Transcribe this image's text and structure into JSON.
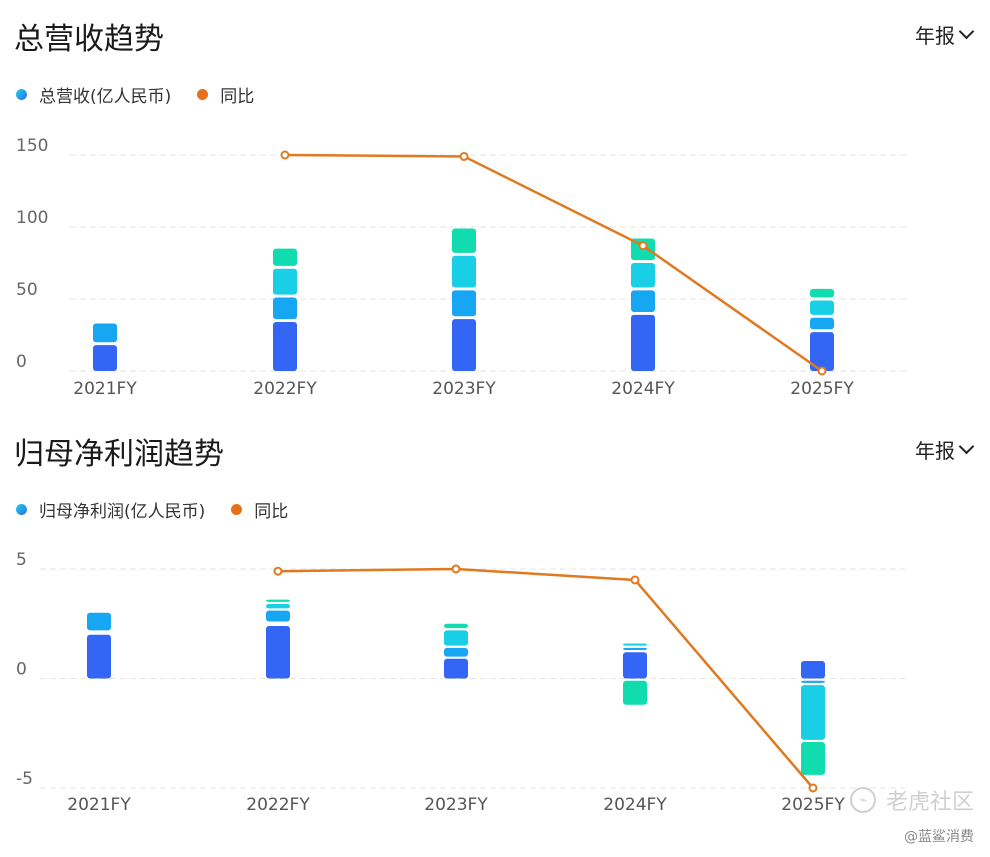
{
  "chart_data": [
    {
      "type": "bar",
      "title": "总营收趋势",
      "period_label": "年报",
      "categories": [
        "2021FY",
        "2022FY",
        "2023FY",
        "2024FY",
        "2025FY"
      ],
      "yticks": [
        "150",
        "100",
        "50",
        "0"
      ],
      "ylim": [
        0,
        150
      ],
      "legend": [
        "总营收(亿人民币)",
        "同比"
      ],
      "series": [
        {
          "name": "总营收(亿人民币)",
          "kind": "bar",
          "values": [
            33,
            85,
            99,
            92,
            57
          ]
        },
        {
          "name": "同比",
          "kind": "line",
          "values": [
            null,
            150,
            149,
            87,
            0
          ]
        }
      ],
      "bar_segments": [
        [
          [
            0,
            18
          ],
          [
            20,
            33
          ]
        ],
        [
          [
            0,
            34
          ],
          [
            36,
            51
          ],
          [
            53,
            71
          ],
          [
            73,
            85
          ]
        ],
        [
          [
            0,
            36
          ],
          [
            38,
            56
          ],
          [
            58,
            80
          ],
          [
            82,
            99
          ]
        ],
        [
          [
            0,
            39
          ],
          [
            41,
            56
          ],
          [
            58,
            75
          ],
          [
            77,
            92
          ]
        ],
        [
          [
            0,
            27
          ],
          [
            29,
            37
          ],
          [
            39,
            49
          ],
          [
            51,
            57
          ]
        ]
      ],
      "colors": {
        "segments": [
          "#3366f5",
          "#16a6f2",
          "#18cfe6",
          "#10dcaf"
        ],
        "line": "#e0791f"
      },
      "legend_position": "top-left",
      "grid": true
    },
    {
      "type": "bar",
      "title": "归母净利润趋势",
      "period_label": "年报",
      "categories": [
        "2021FY",
        "2022FY",
        "2023FY",
        "2024FY",
        "2025FY"
      ],
      "yticks": [
        "5",
        "0",
        "-5"
      ],
      "ylim": [
        -5,
        5
      ],
      "legend": [
        "归母净利润(亿人民币)",
        "同比"
      ],
      "series": [
        {
          "name": "归母净利润(亿人民币)",
          "kind": "bar",
          "values": [
            3.0,
            3.6,
            2.5,
            1.6,
            -4.4
          ]
        },
        {
          "name": "同比",
          "kind": "line",
          "values": [
            null,
            4.9,
            5.0,
            4.5,
            -5.0
          ]
        }
      ],
      "bar_segments": [
        [
          [
            0,
            2.0
          ],
          [
            2.2,
            3.0
          ]
        ],
        [
          [
            0,
            2.4
          ],
          [
            2.6,
            3.1
          ],
          [
            3.2,
            3.4
          ],
          [
            3.5,
            3.6
          ]
        ],
        [
          [
            0,
            0.9
          ],
          [
            1.0,
            1.4
          ],
          [
            1.5,
            2.2
          ],
          [
            2.3,
            2.5
          ]
        ],
        [
          [
            0,
            1.2
          ],
          [
            1.3,
            1.4
          ],
          [
            1.5,
            1.6
          ],
          [
            -1.2,
            -0.1
          ]
        ],
        [
          [
            0,
            0.8
          ],
          [
            -0.1,
            -0.2
          ],
          [
            -0.3,
            -2.8
          ],
          [
            -2.9,
            -4.4
          ]
        ]
      ],
      "colors": {
        "segments": [
          "#3366f5",
          "#16a6f2",
          "#18cfe6",
          "#10dcaf"
        ],
        "line": "#e0791f"
      },
      "legend_position": "top-left",
      "grid": true
    }
  ],
  "watermark": {
    "brand": "老虎社区",
    "credit": "@蓝鲨消费"
  }
}
